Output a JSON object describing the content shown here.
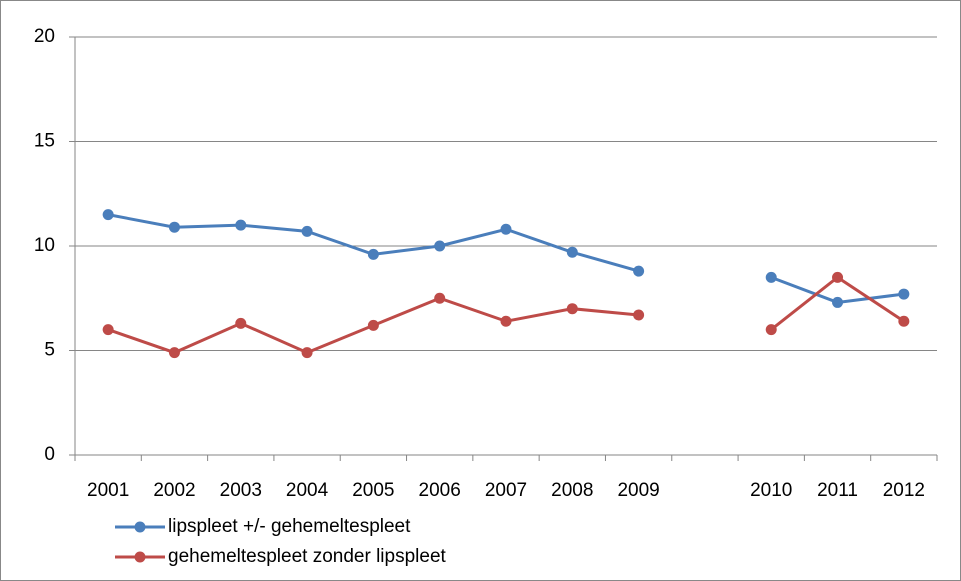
{
  "chart_data": {
    "type": "line",
    "categories": [
      "2001",
      "2002",
      "2003",
      "2004",
      "2005",
      "2006",
      "2007",
      "2008",
      "2009",
      null,
      "2010",
      "2011",
      "2012"
    ],
    "series": [
      {
        "name": "lipspleet +/- gehemeltespleet",
        "color": "#4a7ebb",
        "values": [
          11.5,
          10.9,
          11.0,
          10.7,
          9.6,
          10.0,
          10.8,
          9.7,
          8.8,
          null,
          8.5,
          7.3,
          7.7
        ]
      },
      {
        "name": "gehemeltespleet zonder lipspleet",
        "color": "#be4b48",
        "values": [
          6.0,
          4.9,
          6.3,
          4.9,
          6.2,
          7.5,
          6.4,
          7.0,
          6.7,
          null,
          6.0,
          8.5,
          6.4
        ]
      }
    ],
    "ylim": [
      0,
      20
    ],
    "yticks": [
      0,
      5,
      10,
      15,
      20
    ],
    "grid": true,
    "legend": "bottom-left"
  }
}
